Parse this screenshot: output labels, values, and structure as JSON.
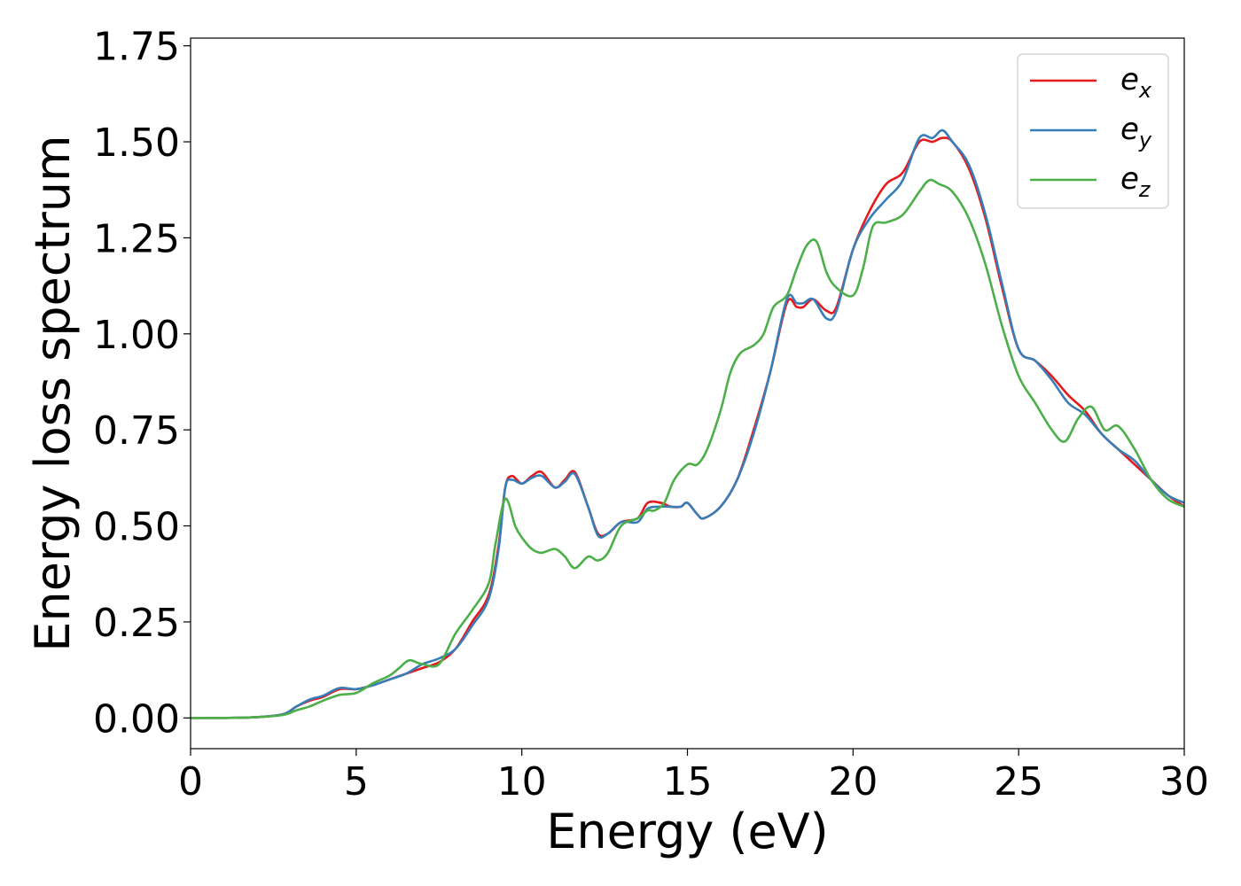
{
  "chart_data": {
    "type": "line",
    "title": "",
    "xlabel": "Energy (eV)",
    "ylabel": "Energy loss spectrum",
    "xlim": [
      0,
      30
    ],
    "ylim": [
      -0.08,
      1.77
    ],
    "x_ticks": [
      0,
      5,
      10,
      15,
      20,
      25,
      30
    ],
    "y_ticks": [
      0.0,
      0.25,
      0.5,
      0.75,
      1.0,
      1.25,
      1.5,
      1.75
    ],
    "x_tick_labels": [
      "0",
      "5",
      "10",
      "15",
      "20",
      "25",
      "30"
    ],
    "y_tick_labels": [
      "0.00",
      "0.25",
      "0.50",
      "0.75",
      "1.00",
      "1.25",
      "1.50",
      "1.75"
    ],
    "grid": false,
    "legend_position": "top-right",
    "series": [
      {
        "name": "e_x",
        "label_base": "e",
        "label_sub": "x",
        "color": "#e41a1c",
        "points": [
          [
            0,
            0.0
          ],
          [
            1,
            0.0
          ],
          [
            2,
            0.002
          ],
          [
            2.8,
            0.01
          ],
          [
            3.2,
            0.03
          ],
          [
            3.6,
            0.045
          ],
          [
            4,
            0.055
          ],
          [
            4.5,
            0.075
          ],
          [
            5,
            0.075
          ],
          [
            5.5,
            0.085
          ],
          [
            6,
            0.1
          ],
          [
            6.5,
            0.115
          ],
          [
            7,
            0.13
          ],
          [
            7.5,
            0.145
          ],
          [
            8,
            0.18
          ],
          [
            8.5,
            0.25
          ],
          [
            9,
            0.32
          ],
          [
            9.3,
            0.45
          ],
          [
            9.5,
            0.6
          ],
          [
            9.7,
            0.63
          ],
          [
            10,
            0.61
          ],
          [
            10.3,
            0.63
          ],
          [
            10.6,
            0.64
          ],
          [
            11,
            0.6
          ],
          [
            11.3,
            0.62
          ],
          [
            11.6,
            0.64
          ],
          [
            12,
            0.55
          ],
          [
            12.3,
            0.48
          ],
          [
            12.6,
            0.48
          ],
          [
            13,
            0.51
          ],
          [
            13.5,
            0.52
          ],
          [
            13.8,
            0.56
          ],
          [
            14.2,
            0.56
          ],
          [
            14.5,
            0.55
          ],
          [
            14.8,
            0.55
          ],
          [
            15,
            0.56
          ],
          [
            15.3,
            0.53
          ],
          [
            15.5,
            0.52
          ],
          [
            16,
            0.55
          ],
          [
            16.5,
            0.62
          ],
          [
            17,
            0.75
          ],
          [
            17.5,
            0.9
          ],
          [
            18,
            1.08
          ],
          [
            18.3,
            1.07
          ],
          [
            18.5,
            1.07
          ],
          [
            18.8,
            1.09
          ],
          [
            19.2,
            1.06
          ],
          [
            19.5,
            1.07
          ],
          [
            20,
            1.22
          ],
          [
            20.5,
            1.32
          ],
          [
            21,
            1.39
          ],
          [
            21.5,
            1.42
          ],
          [
            22,
            1.5
          ],
          [
            22.4,
            1.5
          ],
          [
            22.7,
            1.51
          ],
          [
            23,
            1.5
          ],
          [
            23.5,
            1.43
          ],
          [
            24,
            1.3
          ],
          [
            24.5,
            1.12
          ],
          [
            25,
            0.96
          ],
          [
            25.5,
            0.93
          ],
          [
            26,
            0.89
          ],
          [
            26.5,
            0.84
          ],
          [
            27,
            0.8
          ],
          [
            27.5,
            0.74
          ],
          [
            28,
            0.7
          ],
          [
            28.5,
            0.66
          ],
          [
            29,
            0.62
          ],
          [
            29.5,
            0.58
          ],
          [
            30,
            0.55
          ]
        ]
      },
      {
        "name": "e_y",
        "label_base": "e",
        "label_sub": "y",
        "color": "#377eb8",
        "points": [
          [
            0,
            0.0
          ],
          [
            1,
            0.0
          ],
          [
            2,
            0.002
          ],
          [
            2.8,
            0.01
          ],
          [
            3.2,
            0.03
          ],
          [
            3.6,
            0.048
          ],
          [
            4,
            0.058
          ],
          [
            4.5,
            0.078
          ],
          [
            5,
            0.075
          ],
          [
            5.5,
            0.085
          ],
          [
            6,
            0.1
          ],
          [
            6.5,
            0.115
          ],
          [
            7,
            0.14
          ],
          [
            7.5,
            0.155
          ],
          [
            8,
            0.18
          ],
          [
            8.5,
            0.24
          ],
          [
            9,
            0.31
          ],
          [
            9.3,
            0.44
          ],
          [
            9.5,
            0.6
          ],
          [
            9.7,
            0.62
          ],
          [
            10,
            0.61
          ],
          [
            10.3,
            0.625
          ],
          [
            10.6,
            0.63
          ],
          [
            11,
            0.6
          ],
          [
            11.3,
            0.615
          ],
          [
            11.6,
            0.635
          ],
          [
            12,
            0.55
          ],
          [
            12.3,
            0.475
          ],
          [
            12.6,
            0.48
          ],
          [
            13,
            0.51
          ],
          [
            13.5,
            0.51
          ],
          [
            13.8,
            0.545
          ],
          [
            14.2,
            0.55
          ],
          [
            14.5,
            0.55
          ],
          [
            14.8,
            0.55
          ],
          [
            15,
            0.56
          ],
          [
            15.3,
            0.53
          ],
          [
            15.5,
            0.52
          ],
          [
            16,
            0.55
          ],
          [
            16.5,
            0.62
          ],
          [
            17,
            0.74
          ],
          [
            17.5,
            0.9
          ],
          [
            18,
            1.09
          ],
          [
            18.3,
            1.08
          ],
          [
            18.5,
            1.08
          ],
          [
            18.8,
            1.09
          ],
          [
            19.2,
            1.04
          ],
          [
            19.5,
            1.06
          ],
          [
            20,
            1.22
          ],
          [
            20.5,
            1.3
          ],
          [
            21,
            1.35
          ],
          [
            21.5,
            1.4
          ],
          [
            22,
            1.51
          ],
          [
            22.4,
            1.51
          ],
          [
            22.7,
            1.53
          ],
          [
            23,
            1.5
          ],
          [
            23.5,
            1.44
          ],
          [
            24,
            1.31
          ],
          [
            24.5,
            1.13
          ],
          [
            25,
            0.96
          ],
          [
            25.5,
            0.93
          ],
          [
            26,
            0.88
          ],
          [
            26.5,
            0.82
          ],
          [
            27,
            0.79
          ],
          [
            27.5,
            0.74
          ],
          [
            28,
            0.7
          ],
          [
            28.5,
            0.67
          ],
          [
            29,
            0.62
          ],
          [
            29.5,
            0.58
          ],
          [
            30,
            0.56
          ]
        ]
      },
      {
        "name": "e_z",
        "label_base": "e",
        "label_sub": "z",
        "color": "#4daf4a",
        "points": [
          [
            0,
            0.0
          ],
          [
            1,
            0.0
          ],
          [
            2,
            0.002
          ],
          [
            2.8,
            0.008
          ],
          [
            3.2,
            0.02
          ],
          [
            3.6,
            0.03
          ],
          [
            4,
            0.045
          ],
          [
            4.5,
            0.06
          ],
          [
            5,
            0.065
          ],
          [
            5.5,
            0.09
          ],
          [
            6,
            0.11
          ],
          [
            6.3,
            0.13
          ],
          [
            6.6,
            0.15
          ],
          [
            7,
            0.14
          ],
          [
            7.5,
            0.14
          ],
          [
            8,
            0.22
          ],
          [
            8.5,
            0.28
          ],
          [
            9,
            0.35
          ],
          [
            9.2,
            0.45
          ],
          [
            9.5,
            0.57
          ],
          [
            9.8,
            0.5
          ],
          [
            10,
            0.47
          ],
          [
            10.3,
            0.44
          ],
          [
            10.6,
            0.43
          ],
          [
            11,
            0.44
          ],
          [
            11.3,
            0.42
          ],
          [
            11.6,
            0.39
          ],
          [
            12,
            0.42
          ],
          [
            12.3,
            0.41
          ],
          [
            12.6,
            0.43
          ],
          [
            13,
            0.5
          ],
          [
            13.5,
            0.52
          ],
          [
            13.8,
            0.54
          ],
          [
            14,
            0.54
          ],
          [
            14.3,
            0.56
          ],
          [
            14.6,
            0.62
          ],
          [
            15,
            0.66
          ],
          [
            15.3,
            0.66
          ],
          [
            15.6,
            0.7
          ],
          [
            16,
            0.8
          ],
          [
            16.3,
            0.9
          ],
          [
            16.6,
            0.95
          ],
          [
            17,
            0.97
          ],
          [
            17.3,
            1.0
          ],
          [
            17.6,
            1.07
          ],
          [
            18,
            1.1
          ],
          [
            18.3,
            1.17
          ],
          [
            18.6,
            1.23
          ],
          [
            18.9,
            1.24
          ],
          [
            19.2,
            1.16
          ],
          [
            19.5,
            1.12
          ],
          [
            20,
            1.1
          ],
          [
            20.3,
            1.17
          ],
          [
            20.6,
            1.28
          ],
          [
            21,
            1.29
          ],
          [
            21.5,
            1.31
          ],
          [
            22,
            1.37
          ],
          [
            22.3,
            1.4
          ],
          [
            22.6,
            1.39
          ],
          [
            23,
            1.37
          ],
          [
            23.5,
            1.3
          ],
          [
            24,
            1.18
          ],
          [
            24.5,
            1.02
          ],
          [
            25,
            0.89
          ],
          [
            25.5,
            0.82
          ],
          [
            26,
            0.75
          ],
          [
            26.4,
            0.72
          ],
          [
            26.8,
            0.78
          ],
          [
            27.2,
            0.81
          ],
          [
            27.6,
            0.75
          ],
          [
            28,
            0.76
          ],
          [
            28.5,
            0.7
          ],
          [
            29,
            0.62
          ],
          [
            29.5,
            0.57
          ],
          [
            30,
            0.55
          ]
        ]
      }
    ]
  }
}
